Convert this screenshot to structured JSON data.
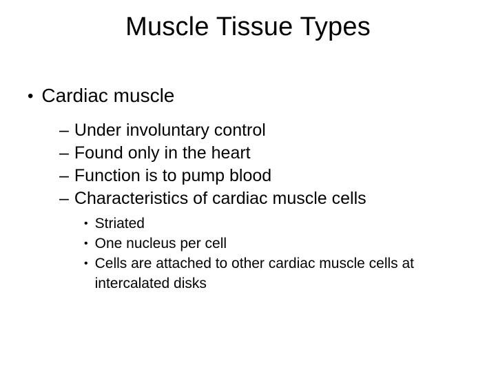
{
  "slide": {
    "title": "Muscle Tissue Types",
    "level1": {
      "bullet_char": "•",
      "item": "Cardiac muscle"
    },
    "level2": {
      "dash_char": "–",
      "items": [
        "Under involuntary control",
        "Found only in the heart",
        "Function is to pump blood",
        "Characteristics of cardiac muscle cells"
      ]
    },
    "level3": {
      "bullet_char": "•",
      "items": [
        "Striated",
        "One nucleus per cell",
        "Cells are attached to other cardiac muscle cells at intercalated disks"
      ]
    }
  },
  "style": {
    "background_color": "#ffffff",
    "text_color": "#000000",
    "font_family": "Arial",
    "title_fontsize": 38,
    "l1_fontsize": 28,
    "l2_fontsize": 25,
    "l3_fontsize": 21
  }
}
